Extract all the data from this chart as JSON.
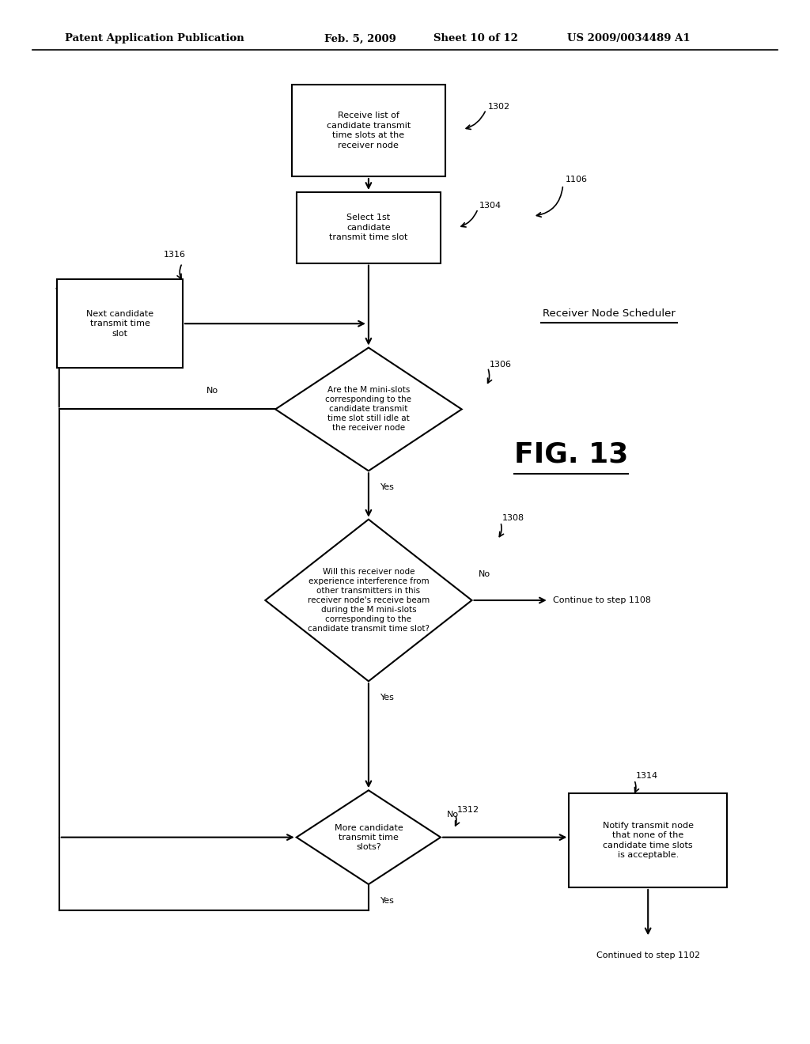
{
  "bg_color": "#ffffff",
  "header_line1": "Patent Application Publication",
  "header_line2": "Feb. 5, 2009",
  "header_line3": "Sheet 10 of 12",
  "header_line4": "US 2009/0034489 A1",
  "fig_label": "FIG. 13",
  "receiver_label": "Receiver Node Scheduler",
  "box1302_text": "Receive list of\ncandidate transmit\ntime slots at the\nreceiver node",
  "box1304_text": "Select 1st\ncandidate\ntransmit time slot",
  "box1316_text": "Next candidate\ntransmit time\nslot",
  "dia1306_text": "Are the M mini-slots\ncorresponding to the\ncandidate transmit\ntime slot still idle at\nthe receiver node",
  "dia1308_text": "Will this receiver node\nexperience interference from\nother transmitters in this\nreceiver node's receive beam\nduring the M mini-slots\ncorresponding to the\ncandidate transmit time slot?",
  "dia1312_text": "More candidate\ntransmit time\nslots?",
  "box1314_text": "Notify transmit node\nthat none of the\ncandidate time slots\nis acceptable.",
  "step1108_text": "Continue to step 1108",
  "step1102_text": "Continued to step 1102"
}
